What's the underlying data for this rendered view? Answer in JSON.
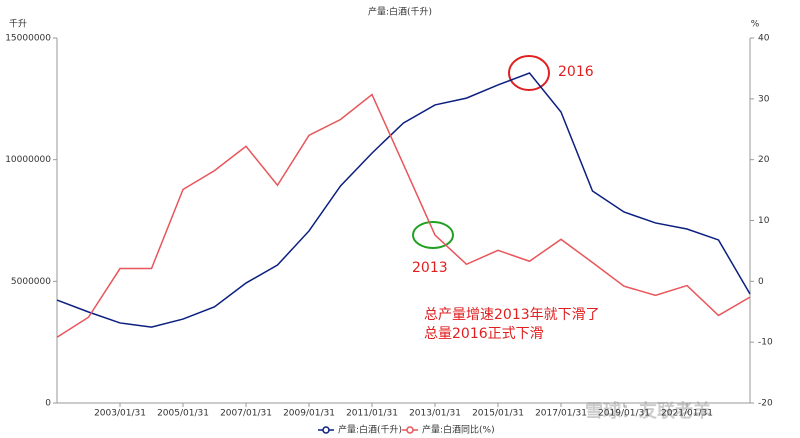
{
  "chart_data": {
    "type": "line",
    "title": "产量:白酒(千升)",
    "y_label": "千升",
    "y2_label": "%",
    "categories": [
      null,
      null,
      "2003/01/31",
      null,
      "2005/01/31",
      null,
      "2007/01/31",
      null,
      "2009/01/31",
      null,
      "2011/01/31",
      null,
      "2013/01/31",
      null,
      "2015/01/31",
      null,
      "2017/01/31",
      null,
      "2019/01/31",
      null,
      "2021/01/31",
      null,
      null
    ],
    "ylim": [
      0,
      15000000
    ],
    "yticks": [
      0,
      5000000,
      10000000,
      15000000
    ],
    "y2lim": [
      -20,
      40
    ],
    "y2ticks": [
      -20,
      -10,
      0,
      10,
      20,
      30,
      40
    ],
    "series": [
      {
        "name": "产量:白酒(千升)",
        "color": "#0b1f80",
        "values": [
          4230000,
          3740000,
          3290000,
          3120000,
          3450000,
          3950000,
          4930000,
          5670000,
          7070000,
          8920000,
          10270000,
          11510000,
          12250000,
          12530000,
          13070000,
          13560000,
          11960000,
          8710000,
          7850000,
          7400000,
          7150000,
          6700000,
          4480000
        ]
      },
      {
        "name": "产量:白酒同比(%)",
        "color": "#e8555a",
        "axis": "y2",
        "values": [
          -9.2,
          -5.9,
          2.1,
          2.1,
          15.1,
          18.2,
          22.2,
          15.8,
          24.0,
          26.6,
          30.7,
          19.2,
          7.6,
          2.8,
          5.1,
          3.3,
          6.9,
          3.1,
          -0.8,
          -2.3,
          -0.7,
          -5.6,
          -2.6
        ]
      }
    ],
    "annotations": [
      "2016",
      "2013",
      "总产量增速2013年就下滑了",
      "总量2016正式下滑"
    ],
    "watermark": "雪球：友联老羊"
  }
}
